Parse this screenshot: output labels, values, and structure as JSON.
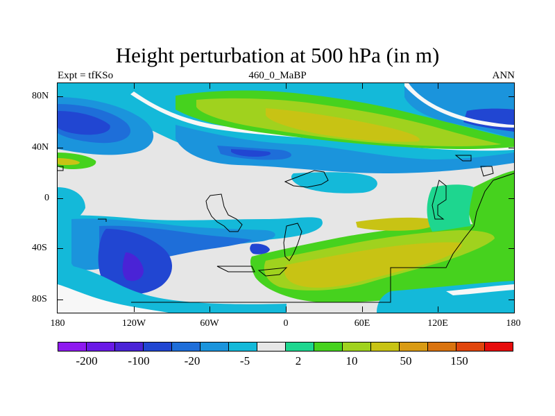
{
  "title": "Height perturbation at 500 hPa (in m)",
  "subtitle_left": "Expt = tfKSo",
  "subtitle_center": "460_0_MaBP",
  "subtitle_right": "ANN",
  "y_ticks": [
    "80N",
    "40N",
    "0",
    "40S",
    "80S"
  ],
  "x_ticks": [
    "180",
    "120W",
    "60W",
    "0",
    "60E",
    "120E",
    "180"
  ],
  "colorbar_labels": [
    "-200",
    "-100",
    "-20",
    "-5",
    "2",
    "10",
    "50",
    "150"
  ],
  "colorbar_colors": [
    "#8e1aef",
    "#6a1ae6",
    "#4a23d6",
    "#2146d2",
    "#1e6ed9",
    "#1b94dc",
    "#14b9d9",
    "#e6e6e6",
    "#1ed68f",
    "#46d21e",
    "#a0d21e",
    "#c8c314",
    "#d99b14",
    "#d9730f",
    "#e0450c",
    "#e60c0c"
  ],
  "palette": {
    "deep_blue": "#2146d2",
    "mid_blue": "#1e6ed9",
    "light_blue": "#1b94dc",
    "cyan": "#14b9d9",
    "neutral": "#e6e6e6",
    "teal_green": "#1ed68f",
    "green": "#46d21e",
    "yellow_green": "#a0d21e",
    "olive": "#c8c314"
  }
}
